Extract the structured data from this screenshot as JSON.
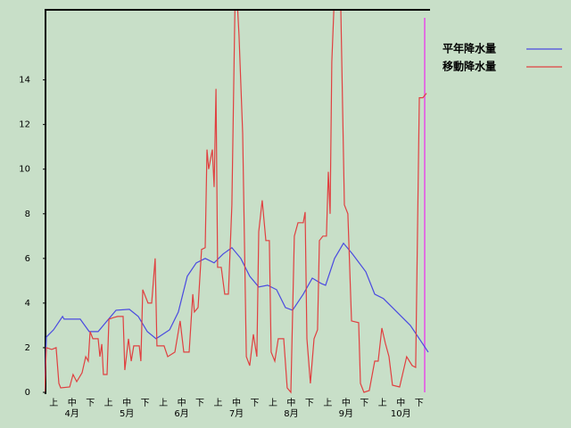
{
  "chart_data": {
    "type": "line",
    "categories": [
      "上",
      "中",
      "下",
      "上",
      "中",
      "下",
      "上",
      "中",
      "下",
      "上",
      "中",
      "下",
      "上",
      "中",
      "下",
      "上",
      "中",
      "下",
      "上",
      "中",
      "下"
    ],
    "months": [
      "4月",
      "5月",
      "6月",
      "7月",
      "8月",
      "9月",
      "10月"
    ],
    "xlim": [
      0,
      21
    ],
    "ylim": [
      0,
      17.1
    ],
    "yticks": [
      0,
      2,
      4,
      6,
      8,
      10,
      12,
      14
    ],
    "series": [
      {
        "name": "平年降水量",
        "color": "#4a4ae0",
        "x": [
          0,
          0.1,
          0.49,
          0.98,
          1.07,
          1.95,
          2.44,
          2.93,
          3.42,
          3.91,
          4.64,
          5.13,
          5.62,
          6.1,
          6.84,
          7.32,
          7.81,
          8.3,
          8.79,
          9.28,
          9.77,
          10.25,
          10.74,
          11.23,
          11.72,
          12.21,
          12.7,
          13.18,
          13.57,
          14.16,
          14.65,
          15.14,
          15.38,
          15.87,
          16.36,
          16.85,
          17.58,
          18.07,
          18.55,
          19.04,
          19.53,
          20.02,
          20.51,
          21.0
        ],
        "values": [
          0,
          2.48,
          2.8,
          3.4,
          3.28,
          3.28,
          2.72,
          2.72,
          3.2,
          3.68,
          3.72,
          3.4,
          2.72,
          2.4,
          2.8,
          3.6,
          5.2,
          5.8,
          6.0,
          5.8,
          6.2,
          6.48,
          6.0,
          5.2,
          4.72,
          4.8,
          4.6,
          3.8,
          3.68,
          4.4,
          5.12,
          4.88,
          4.8,
          6.0,
          6.68,
          6.2,
          5.4,
          4.4,
          4.2,
          3.8,
          3.4,
          3.0,
          2.4,
          1.8
        ]
      },
      {
        "name": "移動降水量",
        "color": "#e04040",
        "x": [
          0,
          0.1,
          0.39,
          0.63,
          0.78,
          0.88,
          1.37,
          1.56,
          1.76,
          2.05,
          2.25,
          2.39,
          2.49,
          2.64,
          2.93,
          3.03,
          3.13,
          3.22,
          3.42,
          3.52,
          3.81,
          4.0,
          4.3,
          4.39,
          4.59,
          4.74,
          4.88,
          5.18,
          5.27,
          5.37,
          5.66,
          5.86,
          6.05,
          6.15,
          6.54,
          6.74,
          7.13,
          7.42,
          7.62,
          7.91,
          8.11,
          8.2,
          8.4,
          8.59,
          8.79,
          8.89,
          8.98,
          9.18,
          9.28,
          9.38,
          9.47,
          9.67,
          9.86,
          10.06,
          10.25,
          10.45,
          10.64,
          10.84,
          11.04,
          11.23,
          11.43,
          11.62,
          11.72,
          11.91,
          12.11,
          12.3,
          12.4,
          12.6,
          12.79,
          13.09,
          13.28,
          13.48,
          13.67,
          13.87,
          14.16,
          14.26,
          14.36,
          14.55,
          14.75,
          14.94,
          15.04,
          15.23,
          15.43,
          15.53,
          15.63,
          15.72,
          15.92,
          16.21,
          16.41,
          16.6,
          16.8,
          17.19,
          17.29,
          17.48,
          17.77,
          18.07,
          18.26,
          18.46,
          18.65,
          18.85,
          19.04,
          19.43,
          19.82,
          20.12,
          20.31,
          20.51,
          20.7,
          20.9
        ],
        "values": [
          0,
          2,
          1.92,
          2,
          0.4,
          0.2,
          0.24,
          0.8,
          0.48,
          0.88,
          1.6,
          1.4,
          2.72,
          2.4,
          2.4,
          1.6,
          2.16,
          0.8,
          0.8,
          3.28,
          3.36,
          3.4,
          3.4,
          1.0,
          2.4,
          1.4,
          2.08,
          2.08,
          1.4,
          4.6,
          4.0,
          4.0,
          6.0,
          2.08,
          2.08,
          1.6,
          1.8,
          3.2,
          1.8,
          1.8,
          4.4,
          3.6,
          3.8,
          6.4,
          6.48,
          10.88,
          10.0,
          10.88,
          9.2,
          13.6,
          5.6,
          5.6,
          4.4,
          4.4,
          8.4,
          19,
          16.0,
          11.6,
          1.6,
          1.2,
          2.6,
          1.6,
          7.2,
          8.6,
          6.8,
          6.8,
          1.8,
          1.4,
          2.4,
          2.4,
          0.2,
          0,
          7.0,
          7.6,
          7.6,
          8.08,
          2.4,
          0.4,
          2.4,
          2.8,
          6.8,
          7.0,
          7.0,
          9.88,
          8.0,
          14.8,
          19,
          17.4,
          8.4,
          8.0,
          3.2,
          3.12,
          0.4,
          0,
          0.08,
          1.4,
          1.4,
          2.88,
          2.2,
          1.6,
          0.32,
          0.24,
          1.6,
          1.2,
          1.12,
          13.2,
          13.2,
          13.4
        ]
      }
    ]
  }
}
